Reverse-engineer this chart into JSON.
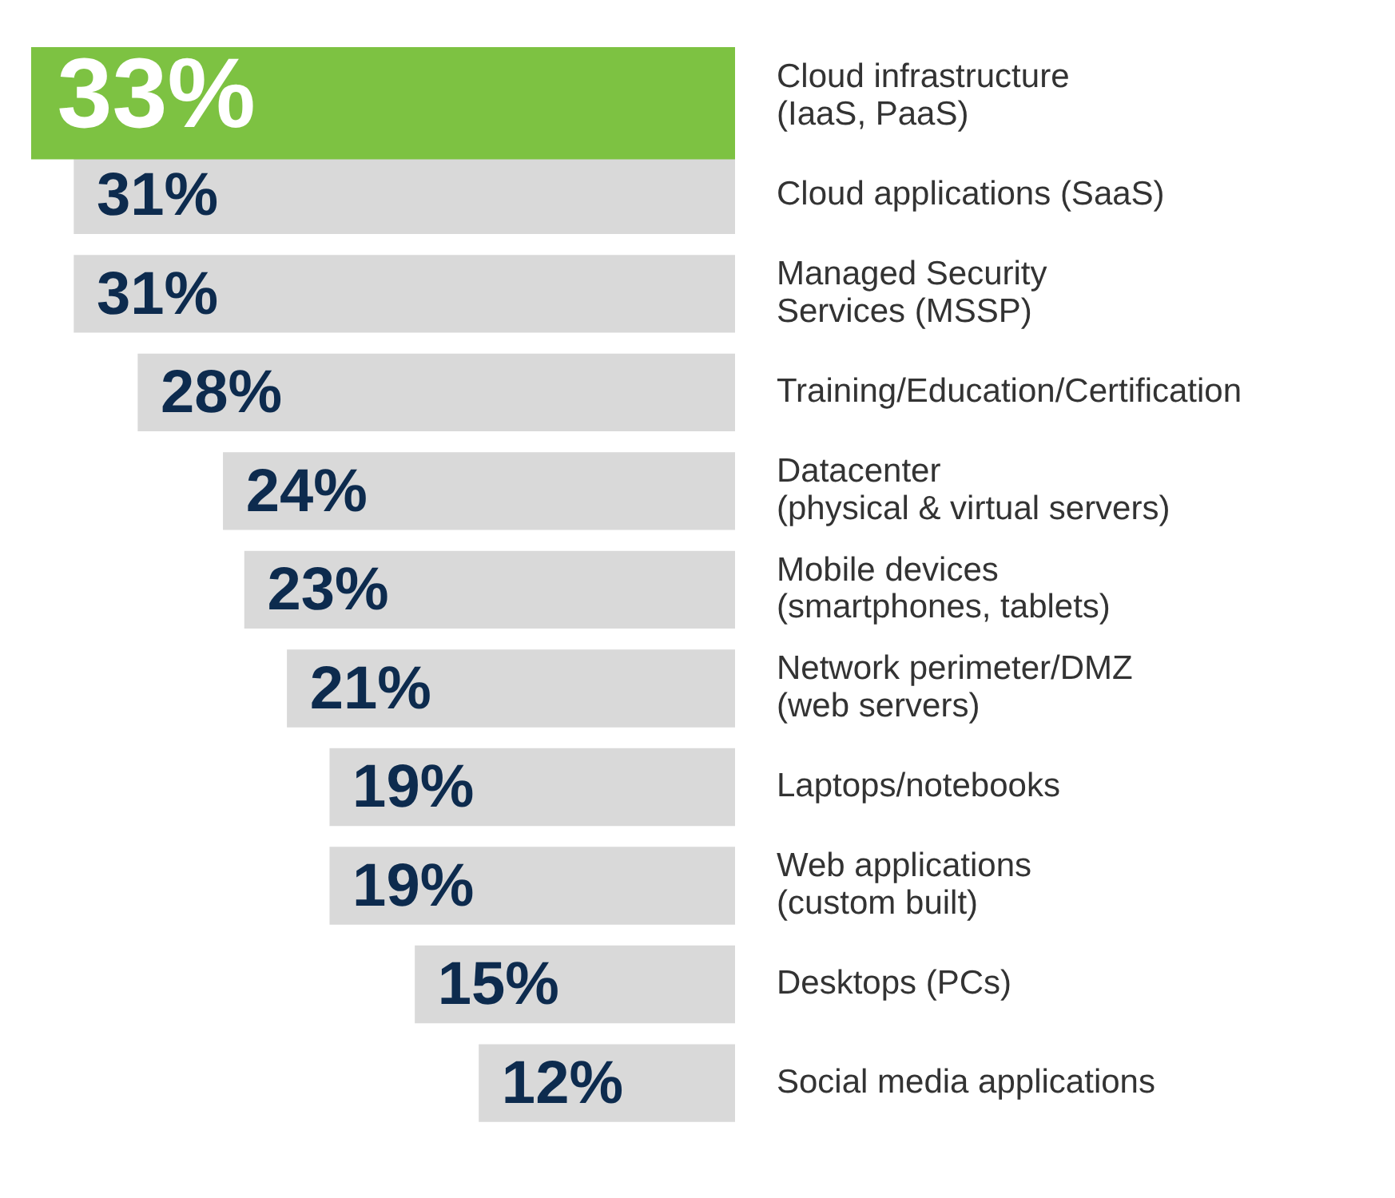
{
  "chart_data": {
    "type": "bar",
    "orientation": "horizontal",
    "data_labels": true,
    "legend": false,
    "tick_labels": "y",
    "categories": [
      "Cloud infrastructure\n(IaaS, PaaS)",
      "Cloud applications (SaaS)",
      "Managed Security\nServices (MSSP)",
      "Training/Education/Certification",
      "Datacenter\n(physical & virtual servers)",
      "Mobile devices\n(smartphones, tablets)",
      "Network perimeter/DMZ\n(web servers)",
      "Laptops/notebooks",
      "Web applications\n(custom built)",
      "Desktops (PCs)",
      "Social media applications"
    ],
    "values": [
      33,
      31,
      31,
      28,
      24,
      23,
      21,
      19,
      19,
      15,
      12
    ],
    "value_labels": [
      "33%",
      "31%",
      "31%",
      "28%",
      "24%",
      "23%",
      "21%",
      "19%",
      "19%",
      "15%",
      "12%"
    ],
    "colors": [
      "#7dc242",
      "#d9d9d9",
      "#d9d9d9",
      "#d9d9d9",
      "#d9d9d9",
      "#d9d9d9",
      "#d9d9d9",
      "#d9d9d9",
      "#d9d9d9",
      "#d9d9d9",
      "#d9d9d9"
    ]
  }
}
